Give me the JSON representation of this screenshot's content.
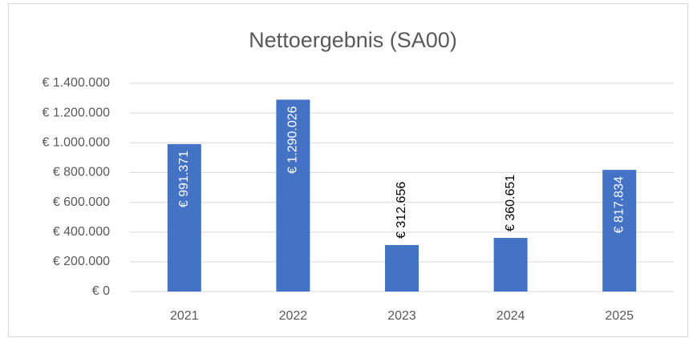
{
  "chart_data": {
    "type": "bar",
    "title": "Nettoergebnis (SA00)",
    "categories": [
      "2021",
      "2022",
      "2023",
      "2024",
      "2025"
    ],
    "values": [
      991371,
      1290026,
      312656,
      360651,
      817834
    ],
    "value_labels": [
      "€ 991.371",
      "€ 1.290.026",
      "€ 312.656",
      "€ 360.651",
      "€ 817.834"
    ],
    "color": "#4472c4",
    "ylim": [
      0,
      1400000
    ],
    "yticks": [
      {
        "value": 0,
        "label": "€ 0"
      },
      {
        "value": 200000,
        "label": "€ 200.000"
      },
      {
        "value": 400000,
        "label": "€ 400.000"
      },
      {
        "value": 600000,
        "label": "€ 600.000"
      },
      {
        "value": 800000,
        "label": "€ 800.000"
      },
      {
        "value": 1000000,
        "label": "€ 1.000.000"
      },
      {
        "value": 1200000,
        "label": "€ 1.200.000"
      },
      {
        "value": 1400000,
        "label": "€ 1.400.000"
      }
    ],
    "grid": true
  }
}
